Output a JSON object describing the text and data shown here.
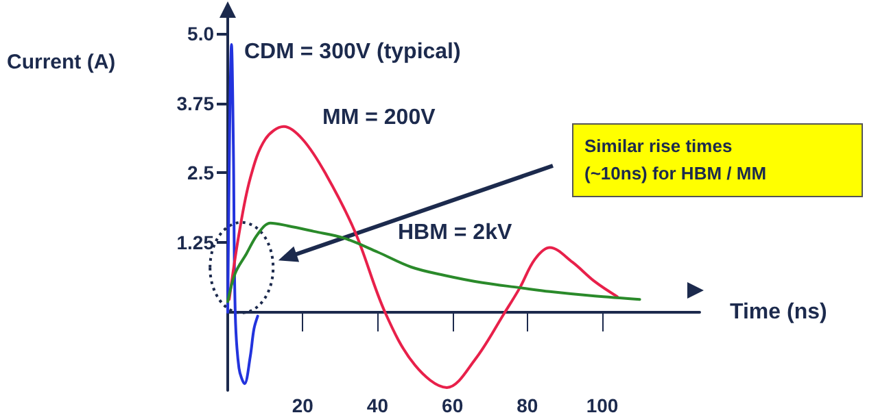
{
  "chart_data": {
    "type": "line",
    "xlabel": "Time (ns)",
    "ylabel": "Current (A)",
    "xlim": [
      0,
      126
    ],
    "xticks": [
      20,
      40,
      60,
      80,
      100
    ],
    "ylim": [
      -1.4,
      5.5
    ],
    "yticks": [
      1.25,
      2.5,
      3.75,
      {
        "value": 5,
        "label": "5.0"
      }
    ],
    "grid": false,
    "marker": "none",
    "line_style": "solid",
    "series": [
      {
        "color": "#2233dd",
        "x": [
          0,
          0.5,
          1,
          1.5,
          2,
          3,
          4.5,
          6,
          7,
          8
        ],
        "values": [
          0,
          3.2,
          4.8,
          3.0,
          0,
          -1.0,
          -1.28,
          -0.8,
          -0.3,
          -0.07
        ]
      },
      {
        "color": "#e8204a",
        "x": [
          0.4,
          3,
          6,
          10,
          15,
          20,
          26,
          34,
          42,
          50,
          58.5,
          66,
          74,
          78,
          82,
          86,
          92,
          98,
          104
        ],
        "values": [
          0.23,
          1.4,
          2.4,
          3.1,
          3.33,
          3.1,
          2.5,
          1.44,
          0,
          -0.95,
          -1.35,
          -0.85,
          0,
          0.44,
          0.95,
          1.16,
          0.9,
          0.55,
          0.28
        ]
      },
      {
        "color": "#2a8a2a",
        "x": [
          0,
          2,
          5,
          8,
          11.4,
          16,
          23,
          31,
          40,
          49,
          58,
          68,
          78,
          86,
          98,
          110
        ],
        "values": [
          0.19,
          0.7,
          1.05,
          1.4,
          1.6,
          1.55,
          1.45,
          1.33,
          1.08,
          0.81,
          0.66,
          0.53,
          0.44,
          0.37,
          0.29,
          0.23
        ]
      }
    ],
    "annotations": [
      "CDM = 300V (typical)",
      "MM = 200V",
      "HBM = 2kV",
      "Similar rise times\n(~10ns) for HBM / MM"
    ]
  }
}
